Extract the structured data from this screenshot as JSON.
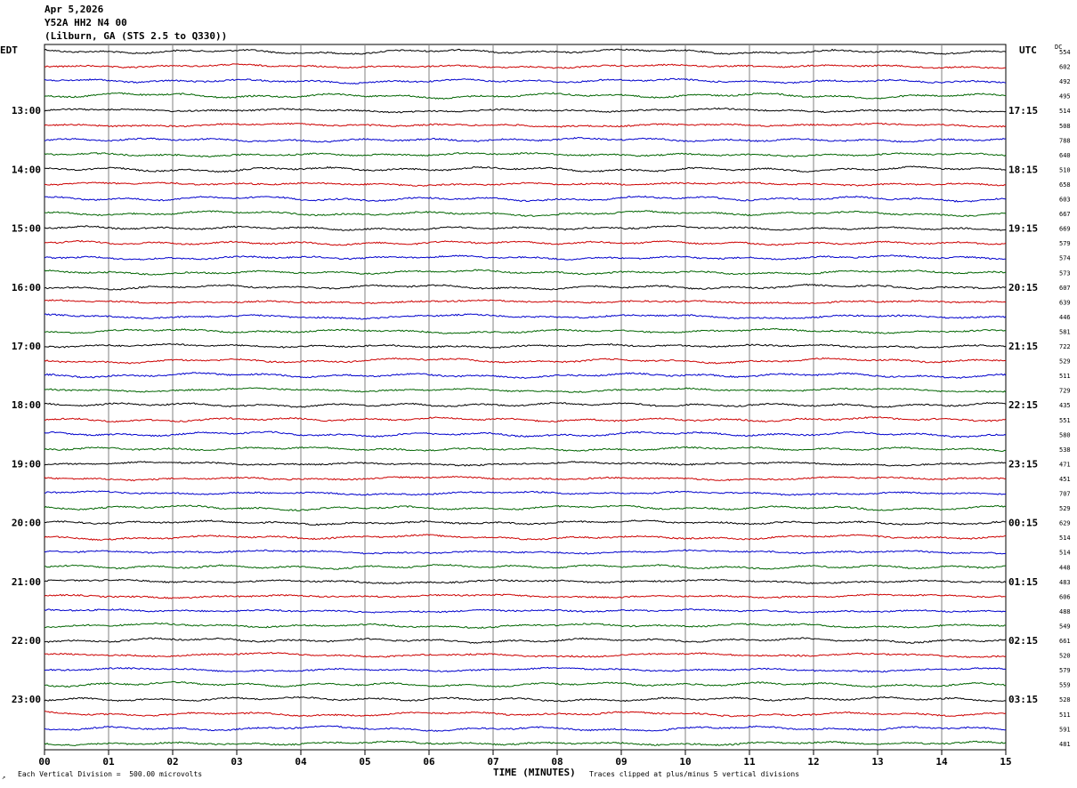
{
  "header": {
    "date": "Apr 5,2026",
    "station": "Y52A HH2 N4 00",
    "location": "(Lilburn, GA (STS 2.5 to Q330))"
  },
  "left_timezone": "EDT",
  "right_timezone": "UTC",
  "dc_label": "DC",
  "footer": {
    "scale_note": "Each Vertical Division =  500.00 microvolts",
    "clip_note": "Traces clipped at plus/minus 5 vertical divisions",
    "corner_mark": "↗"
  },
  "colors": {
    "trace_cycle": [
      "#000000",
      "#cc0000",
      "#0000cc",
      "#006400"
    ],
    "grid": "#808080"
  },
  "chart_data": {
    "type": "line",
    "title": "",
    "xlabel": "TIME (MINUTES)",
    "x_ticks": [
      "00",
      "01",
      "02",
      "03",
      "04",
      "05",
      "06",
      "07",
      "08",
      "09",
      "10",
      "11",
      "12",
      "13",
      "14",
      "15"
    ],
    "xlim": [
      0,
      15
    ],
    "left_hour_labels": [
      "13:00",
      "14:00",
      "15:00",
      "16:00",
      "17:00",
      "18:00",
      "19:00",
      "20:00",
      "21:00",
      "22:00",
      "23:00"
    ],
    "right_hour_labels": [
      "17:15",
      "18:15",
      "19:15",
      "20:15",
      "21:15",
      "22:15",
      "23:15",
      "00:15",
      "01:15",
      "02:15",
      "03:15"
    ],
    "first_labeled_trace_index": 4,
    "trace_count": 48,
    "dc_offsets": [
      "554",
      "602",
      "492",
      "495",
      "514",
      "508",
      "788",
      "640",
      "510",
      "658",
      "603",
      "667",
      "669",
      "579",
      "574",
      "573",
      "607",
      "639",
      "446",
      "581",
      "722",
      "529",
      "511",
      "729",
      "435",
      "551",
      "580",
      "538",
      "471",
      "451",
      "707",
      "529",
      "629",
      "514",
      "514",
      "448",
      "483",
      "606",
      "488",
      "549",
      "661",
      "520",
      "579",
      "559",
      "528",
      "511",
      "591",
      "481"
    ],
    "grid": true,
    "trace_units": "microvolts",
    "vertical_division": 500
  }
}
